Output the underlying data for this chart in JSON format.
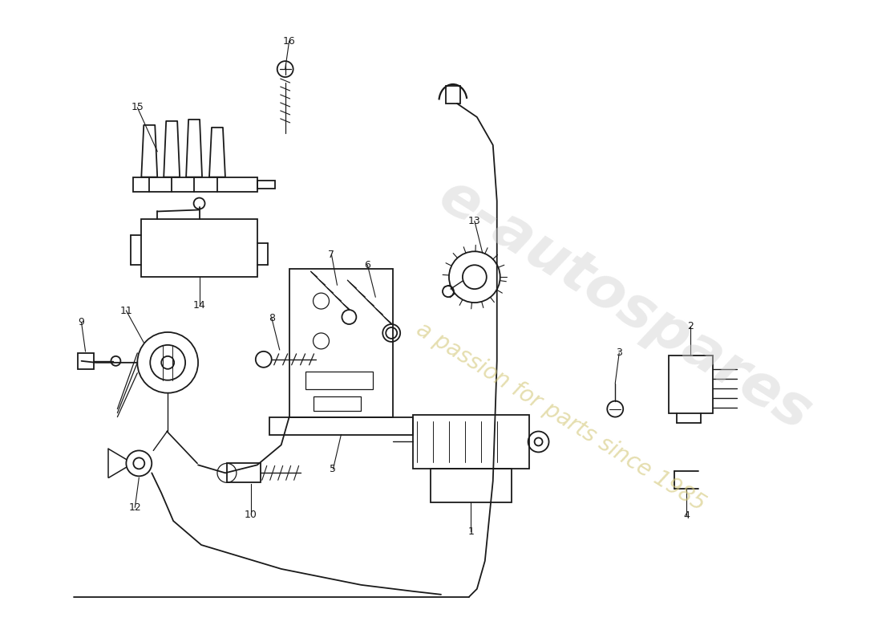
{
  "bg_color": "#ffffff",
  "line_color": "#1a1a1a",
  "watermark1_color": "#d0d0d0",
  "watermark2_color": "#d4c87a",
  "watermark1": "e-autospares",
  "watermark2": "a passion for parts since 1985"
}
